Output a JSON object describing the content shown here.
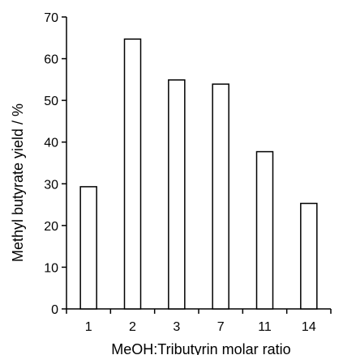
{
  "chart_data": {
    "type": "bar",
    "categories": [
      "1",
      "2",
      "3",
      "7",
      "11",
      "14"
    ],
    "values": [
      29.3,
      64.7,
      54.9,
      53.9,
      37.7,
      25.3
    ],
    "title": "",
    "xlabel": "MeOH:Tributyrin molar ratio",
    "ylabel": "Methyl butyrate yield / %",
    "ylim": [
      0,
      70
    ],
    "yticks": [
      0,
      10,
      20,
      30,
      40,
      50,
      60,
      70
    ],
    "grid": false,
    "legend": "none",
    "bar_fill": "#ffffff",
    "bar_stroke": "#000000"
  }
}
